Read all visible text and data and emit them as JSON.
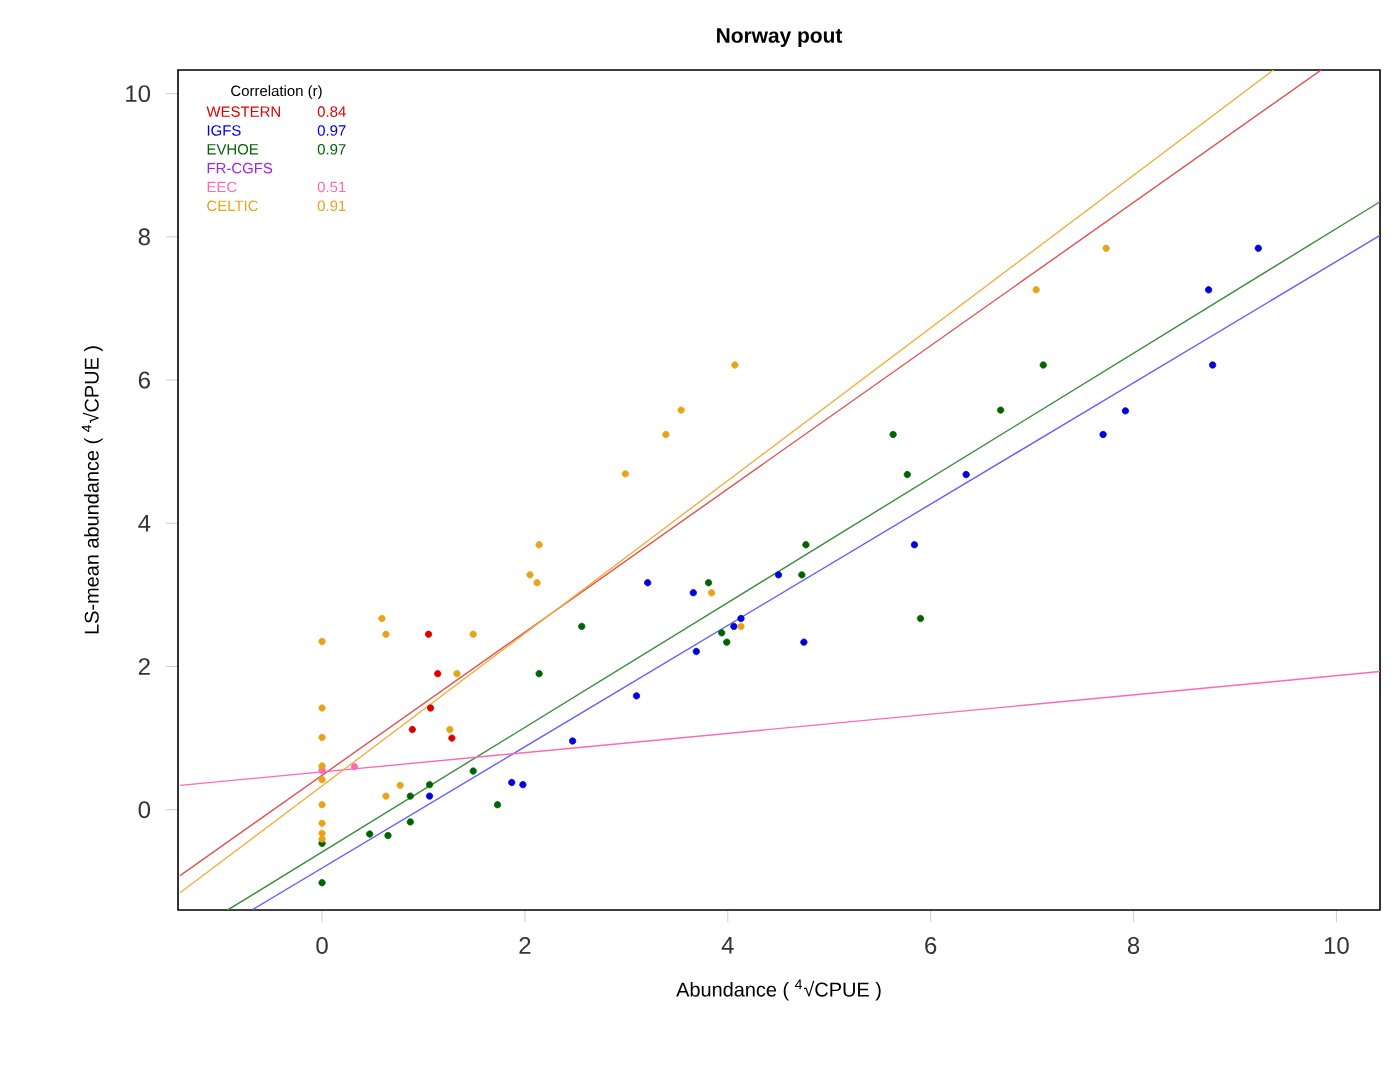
{
  "chart_data": {
    "type": "scatter",
    "title": "Norway pout",
    "xlabel": "Abundance ( $^{4}$√CPUE )",
    "ylabel": "LS-mean abundance ( $^{4}$√CPUE )",
    "legend_title": "Correlation (r)",
    "legend": "top left",
    "xlim": [
      -1.42,
      10.43
    ],
    "ylim": [
      -1.4,
      10.33
    ],
    "xticks": [
      0,
      2,
      4,
      6,
      8,
      10
    ],
    "yticks": [
      0,
      2,
      4,
      6,
      8,
      10
    ],
    "annotations": [
      "0.84",
      "0.97",
      "0.97",
      "0.51",
      "0.91"
    ],
    "series": [
      {
        "name": "WESTERN",
        "marker": "circle",
        "color": "#dd0000",
        "x": [
          1.05,
          1.14,
          1.07,
          0.89,
          1.28
        ],
        "values": [
          2.45,
          1.9,
          1.42,
          1.12,
          1.0
        ]
      },
      {
        "name": "IGFS",
        "marker": "circle",
        "color": "#0000dd",
        "x": [
          1.06,
          1.87,
          1.98,
          2.47,
          3.1,
          3.21,
          3.66,
          3.69,
          4.06,
          4.13,
          4.5,
          4.75,
          5.84,
          6.35,
          7.7,
          7.92,
          8.78,
          8.74,
          9.23
        ],
        "values": [
          0.19,
          0.38,
          0.35,
          0.96,
          1.59,
          3.17,
          3.03,
          2.21,
          2.56,
          2.67,
          3.28,
          2.34,
          3.7,
          4.68,
          5.24,
          5.57,
          6.21,
          7.26,
          7.84
        ]
      },
      {
        "name": "EVHOE",
        "marker": "circle",
        "color": "#006400",
        "x": [
          0,
          0,
          0.47,
          0.65,
          0.87,
          0.87,
          1.06,
          1.49,
          1.73,
          2.14,
          2.56,
          3.81,
          4.73,
          4.77,
          3.94,
          3.99,
          5.63,
          5.77,
          5.9,
          6.69,
          7.11
        ],
        "values": [
          -0.47,
          -1.02,
          -0.34,
          -0.36,
          -0.17,
          0.19,
          0.35,
          0.54,
          0.07,
          1.9,
          2.56,
          3.17,
          3.28,
          3.7,
          2.47,
          2.34,
          5.24,
          4.68,
          2.67,
          5.58,
          6.21
        ]
      },
      {
        "name": "FR-CGFS",
        "color": "#a020f0"
      },
      {
        "name": "EEC",
        "marker": "circle",
        "color": "#ff69b4",
        "x": [
          0,
          0.32
        ],
        "values": [
          0.55,
          0.6
        ]
      },
      {
        "name": "CELTIC",
        "marker": "circle",
        "color": "#e8a317",
        "x": [
          0,
          0.59,
          0.63,
          1.49,
          1.33,
          1.26,
          0,
          0,
          0,
          0,
          0,
          0,
          0,
          0,
          0.63,
          0.77,
          2.05,
          2.12,
          2.14,
          2.99,
          4.07,
          3.54,
          3.39,
          3.84,
          4.13,
          7.73,
          7.04
        ],
        "values": [
          2.35,
          2.67,
          2.45,
          2.45,
          1.9,
          1.12,
          1.42,
          1.01,
          0.61,
          0.42,
          0.07,
          -0.19,
          -0.33,
          -0.41,
          0.19,
          0.34,
          3.28,
          3.17,
          3.7,
          4.69,
          6.21,
          5.58,
          5.24,
          3.03,
          2.56,
          7.84,
          7.26
        ]
      },
      {
        "type": "line",
        "marker": "none",
        "color": "#e05050",
        "x": [
          -1.4,
          9.85
        ],
        "values": [
          -0.92,
          10.33
        ]
      },
      {
        "type": "line",
        "marker": "none",
        "color": "#6060ff",
        "x": [
          -0.69,
          10.43
        ],
        "values": [
          -1.4,
          8.02
        ]
      },
      {
        "type": "line",
        "marker": "none",
        "color": "#3c8c3c",
        "x": [
          -0.93,
          10.43
        ],
        "values": [
          -1.4,
          8.49
        ]
      },
      {
        "type": "line",
        "marker": "none",
        "color": "#ff69b4",
        "x": [
          -1.4,
          10.43
        ],
        "values": [
          0.34,
          1.93
        ]
      },
      {
        "type": "line",
        "marker": "none",
        "color": "#f0b040",
        "x": [
          -1.4,
          9.38
        ],
        "values": [
          -1.16,
          10.33
        ]
      }
    ]
  }
}
